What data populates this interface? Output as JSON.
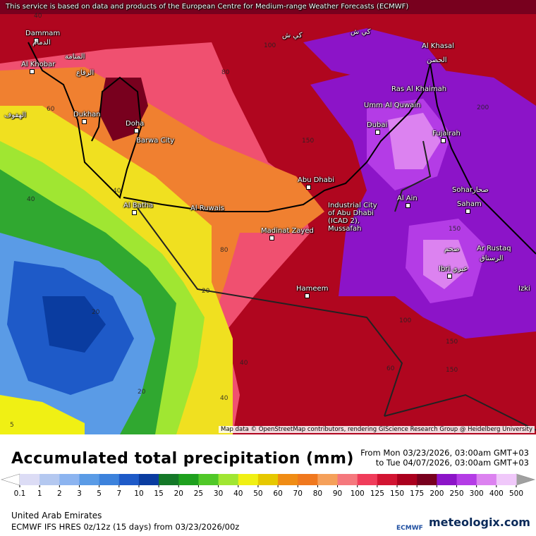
{
  "banner": "This service is based on data and products of the European Centre for Medium-range Weather Forecasts (ECMWF)",
  "places": [
    "Dammam",
    "الدمام",
    "Al Khobar",
    "المنامة",
    "الرفاع",
    "الهفوف",
    "Dukhan",
    "Doha",
    "Barwa City",
    "Al Batha",
    "Al Ruwais",
    "Abu Dhabi",
    "Madinat Zayed",
    "Industrial City of Abu Dhabi (ICAD 2), Mussafah",
    "Hameem",
    "Dubai",
    "Umm Al Quwain",
    "Ras Al Khaimah",
    "Al Khasal",
    "الحصن",
    "Fujairah",
    "Al Ain",
    "Sohar",
    "صحار",
    "Saham",
    "صحم",
    "Ar Rustaq",
    "الرستاق",
    "Ibri",
    "عبري",
    "Izki",
    "كي ش",
    "كي ش"
  ],
  "contours": [
    60,
    40,
    40,
    80,
    20,
    20,
    40,
    40,
    20,
    5,
    100,
    80,
    150,
    100,
    150,
    200,
    150,
    60,
    40,
    150
  ],
  "attribution": "Map data © OpenStreetMap contributors, rendering GIScience Research Group @ Heidelberg University",
  "title": "Accumulated total precipitation (mm)",
  "period": {
    "from": "From Mon 03/23/2026, 03:00am GMT+03",
    "to": "to Tue 04/07/2026, 03:00am GMT+03"
  },
  "legend": {
    "ticks": [
      0.1,
      1,
      2,
      3,
      5,
      7,
      10,
      15,
      20,
      25,
      30,
      40,
      50,
      60,
      70,
      80,
      90,
      100,
      125,
      150,
      175,
      200,
      250,
      300,
      400,
      500
    ],
    "colors": [
      "#dcdcf5",
      "#b4c8f0",
      "#8cb4f0",
      "#5a9be6",
      "#3c82dc",
      "#1e5ac8",
      "#0a3ca0",
      "#147828",
      "#1ea01e",
      "#50c828",
      "#a0e632",
      "#f0f014",
      "#e6c800",
      "#f08c14",
      "#f0781e",
      "#f5a05a",
      "#f5787d",
      "#f03c5a",
      "#d21432",
      "#aa001e",
      "#78001e",
      "#8c14c8",
      "#b43ce6",
      "#dc82f0",
      "#f0c8fa"
    ],
    "under_color": "#ffffff",
    "over_color": "#a0a0a0"
  },
  "region": "United Arab Emirates",
  "model": "ECMWF IFS HRES 0z/12z (15 days) from  03/23/2026/00z",
  "logos": {
    "ecmwf": "ECMWF",
    "meteologix": "meteologix.com"
  }
}
